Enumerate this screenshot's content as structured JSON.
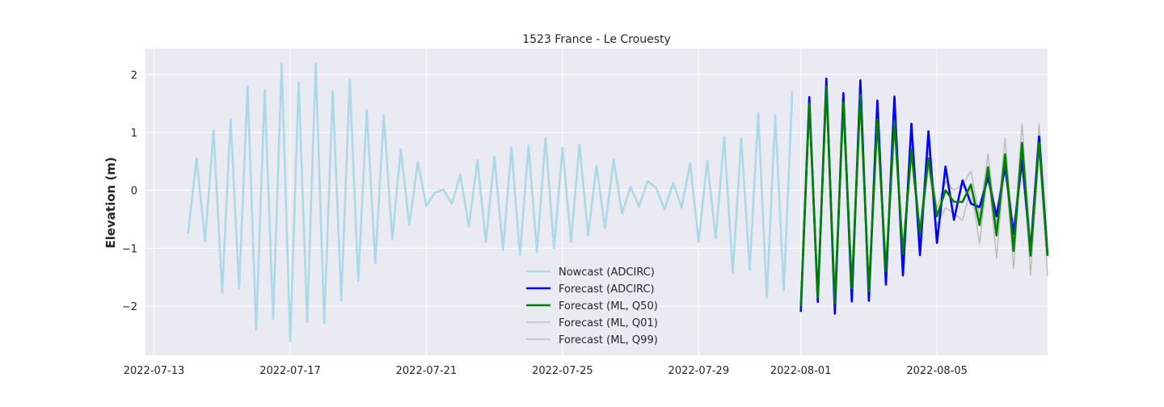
{
  "chart_data": {
    "type": "line",
    "title": "1523 France - Le Crouesty",
    "xlabel": "",
    "ylabel": "Elevation (m)",
    "xlim": [
      "2022-07-12T18:00",
      "2022-08-08T06:00"
    ],
    "ylim": [
      -2.85,
      2.45
    ],
    "x_ticks": [
      "2022-07-13",
      "2022-07-17",
      "2022-07-21",
      "2022-07-25",
      "2022-07-29",
      "2022-08-01",
      "2022-08-05"
    ],
    "y_ticks": [
      2,
      1,
      0,
      -1,
      -2
    ],
    "y_tick_labels": [
      "2",
      "1",
      "0",
      "−1",
      "−2"
    ],
    "grid": true,
    "legend_position": "lower center",
    "colors": {
      "nowcast": "#add8e6",
      "forecast_adcirc": "#0000ff",
      "forecast_q50": "#008000",
      "forecast_q01": "#b8b8b8",
      "forecast_q99": "#b8b8b8",
      "plot_bg": "#eaeaf2",
      "grid": "#ffffff"
    },
    "series": [
      {
        "name": "Nowcast (ADCIRC)",
        "key": "nowcast",
        "start": "2022-07-14T00:00",
        "step_hours": 6,
        "values": [
          -0.75,
          0.55,
          -0.88,
          1.03,
          -1.76,
          1.23,
          -1.7,
          1.8,
          -2.41,
          1.73,
          -2.22,
          2.19,
          -2.6,
          1.86,
          -2.28,
          2.19,
          -2.29,
          1.71,
          -1.9,
          1.91,
          -1.57,
          1.39,
          -1.26,
          1.3,
          -0.85,
          0.71,
          -0.6,
          0.49,
          -0.27,
          -0.04,
          0.01,
          -0.23,
          0.27,
          -0.63,
          0.52,
          -0.89,
          0.58,
          -1.03,
          0.74,
          -1.12,
          0.77,
          -1.07,
          0.9,
          -1.0,
          0.73,
          -0.89,
          0.79,
          -0.78,
          0.42,
          -0.65,
          0.53,
          -0.4,
          0.06,
          -0.28,
          0.16,
          0.04,
          -0.33,
          0.13,
          -0.3,
          0.47,
          -0.89,
          0.51,
          -0.83,
          0.92,
          -1.43,
          0.89,
          -1.37,
          1.33,
          -1.85,
          1.29,
          -1.73,
          1.71
        ]
      },
      {
        "name": "Forecast (ADCIRC)",
        "key": "forecast_adcirc",
        "start": "2022-08-01T00:00",
        "step_hours": 6,
        "values": [
          -2.1,
          1.61,
          -1.93,
          1.93,
          -2.13,
          1.68,
          -1.92,
          1.9,
          -1.91,
          1.55,
          -1.63,
          1.62,
          -1.47,
          1.15,
          -1.12,
          1.02,
          -0.91,
          0.41,
          -0.51,
          0.17,
          -0.23,
          -0.29,
          0.22,
          -0.45,
          0.41,
          -0.75,
          0.52,
          -1.04,
          0.93,
          -1.13
        ]
      },
      {
        "name": "Forecast (ML, Q50)",
        "key": "forecast_q50",
        "start": "2022-08-01T00:00",
        "step_hours": 6,
        "values": [
          -2.0,
          1.5,
          -1.85,
          1.8,
          -1.95,
          1.52,
          -1.7,
          1.65,
          -1.75,
          1.22,
          -1.4,
          1.2,
          -1.1,
          0.7,
          -0.75,
          0.55,
          -0.45,
          0.0,
          -0.2,
          -0.2,
          0.1,
          -0.6,
          0.4,
          -0.78,
          0.62,
          -1.05,
          0.82,
          -1.13,
          0.82,
          -1.13
        ]
      },
      {
        "name": "Forecast (ML, Q01)",
        "key": "forecast_q01",
        "start": "2022-08-01T00:00",
        "step_hours": 6,
        "values": [
          -2.05,
          1.45,
          -1.9,
          1.75,
          -2.0,
          1.45,
          -1.8,
          1.55,
          -1.8,
          1.1,
          -1.5,
          1.05,
          -1.2,
          0.55,
          -0.85,
          0.4,
          -0.6,
          -0.3,
          -0.4,
          -0.52,
          0.05,
          -0.92,
          0.35,
          -1.17,
          0.5,
          -1.35,
          0.7,
          -1.47,
          0.7,
          -1.47
        ]
      },
      {
        "name": "Forecast (ML, Q99)",
        "key": "forecast_q99",
        "start": "2022-08-01T00:00",
        "step_hours": 6,
        "values": [
          -1.95,
          1.58,
          -1.78,
          1.85,
          -1.9,
          1.6,
          -1.62,
          1.72,
          -1.68,
          1.3,
          -1.3,
          1.3,
          -0.98,
          0.82,
          -0.62,
          0.7,
          -0.3,
          0.15,
          0.0,
          0.1,
          0.33,
          -0.45,
          0.63,
          -0.62,
          0.9,
          -0.85,
          1.15,
          -0.95,
          1.15,
          -0.95
        ]
      }
    ]
  }
}
